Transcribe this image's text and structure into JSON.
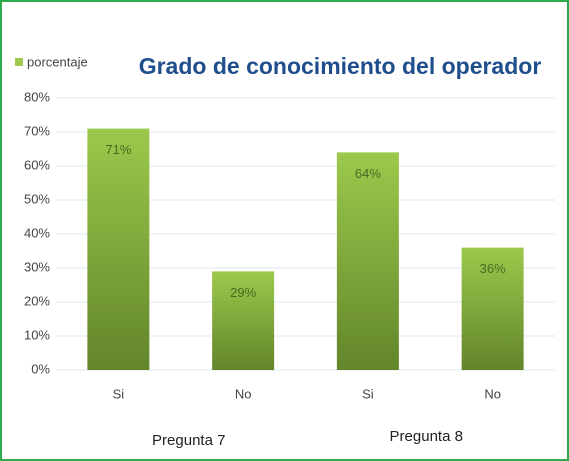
{
  "chart_data": {
    "type": "bar",
    "title": "Grado de conocimiento del operador",
    "categories": [
      "Si",
      "No",
      "Si",
      "No"
    ],
    "series": [
      {
        "name": "porcentaje",
        "color": "#9cc94c",
        "values": [
          71,
          29,
          64,
          36
        ],
        "value_labels": [
          "71%",
          "29%",
          "64%",
          "36%"
        ]
      }
    ],
    "group_labels": [
      "Pregunta 7",
      "Pregunta 8"
    ],
    "ylim": [
      0,
      80
    ],
    "yticks": [
      {
        "value": 0,
        "label": "0%"
      },
      {
        "value": 10,
        "label": "10%"
      },
      {
        "value": 20,
        "label": "20%"
      },
      {
        "value": 30,
        "label": "30%"
      },
      {
        "value": 40,
        "label": "40%"
      },
      {
        "value": 50,
        "label": "50%"
      },
      {
        "value": 60,
        "label": "60%"
      },
      {
        "value": 70,
        "label": "70%"
      },
      {
        "value": 80,
        "label": "80%"
      }
    ],
    "grid": true,
    "legend": "top-left"
  }
}
